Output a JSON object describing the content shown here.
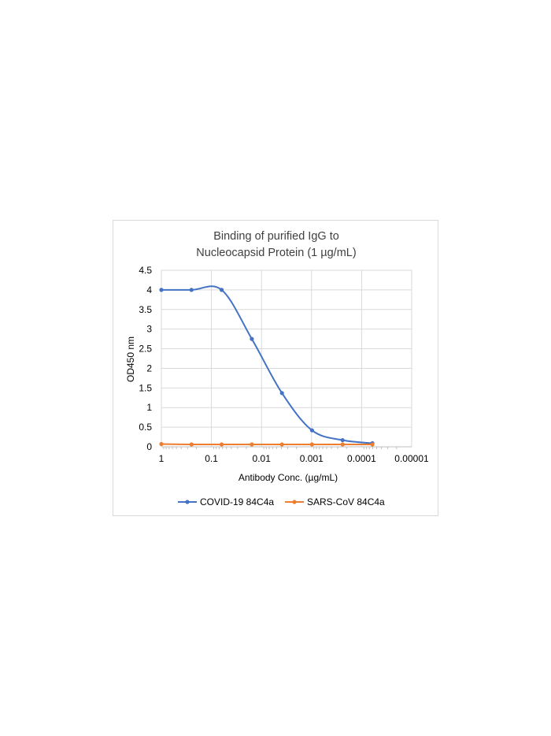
{
  "chart_data": {
    "type": "line",
    "title_lines": [
      "Binding of purified IgG to",
      "Nucleocapsid Protein (1 µg/mL)"
    ],
    "xlabel": "Antibody Conc. (µg/mL)",
    "ylabel": "OD450 nm",
    "x_scale": "log",
    "x_reversed": true,
    "xlim": [
      1,
      1e-05
    ],
    "x_tick_values": [
      1,
      0.1,
      0.01,
      0.001,
      0.0001,
      1e-05
    ],
    "x_tick_labels": [
      "1",
      "0.1",
      "0.01",
      "0.001",
      "0.0001",
      "0.00001"
    ],
    "ylim": [
      0,
      4.5
    ],
    "y_tick_values": [
      0,
      0.5,
      1,
      1.5,
      2,
      2.5,
      3,
      3.5,
      4,
      4.5
    ],
    "y_tick_labels": [
      "0",
      "0.5",
      "1",
      "1.5",
      "2",
      "2.5",
      "3",
      "3.5",
      "4",
      "4.5"
    ],
    "grid": true,
    "legend_position": "bottom",
    "x": [
      1,
      0.25,
      0.0625,
      0.0156,
      0.0039,
      0.00098,
      0.00024,
      6.1e-05
    ],
    "series": [
      {
        "name": "COVID-19 84C4a",
        "color": "#4472C4",
        "values": [
          4.0,
          4.0,
          4.0,
          2.75,
          1.37,
          0.42,
          0.17,
          0.09
        ]
      },
      {
        "name": "SARS-CoV 84C4a",
        "color": "#ED7D31",
        "values": [
          0.07,
          0.06,
          0.06,
          0.06,
          0.06,
          0.06,
          0.06,
          0.06
        ]
      }
    ]
  }
}
